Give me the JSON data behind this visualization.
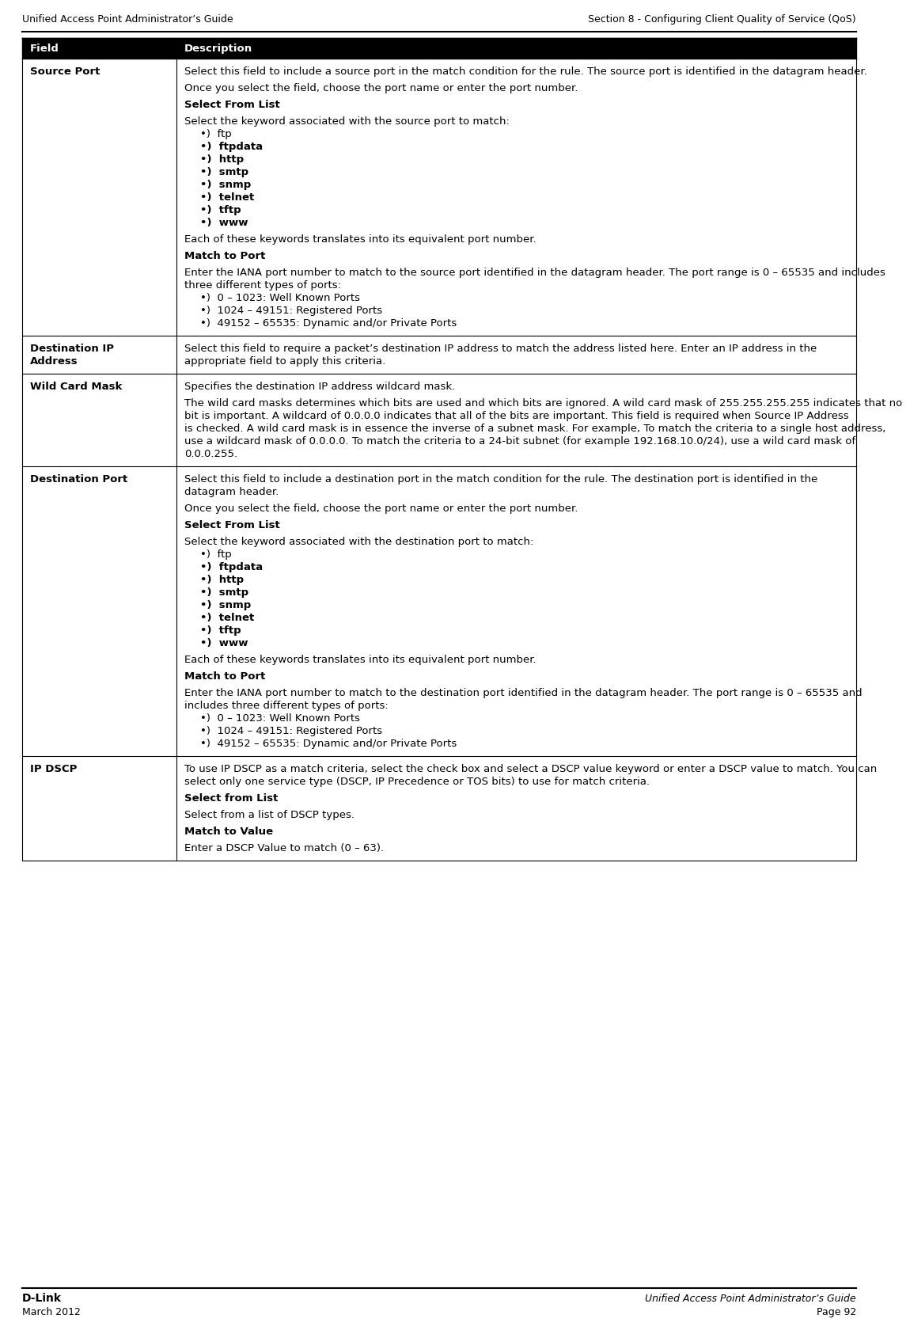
{
  "header_left": "Unified Access Point Administrator’s Guide",
  "header_right": "Section 8 - Configuring Client Quality of Service (QoS)",
  "footer_left_bold": "D-Link",
  "footer_left": "March 2012",
  "footer_right_top": "Unified Access Point Administrator’s Guide",
  "footer_right_bottom": "Page 92",
  "table_header_bg": "#000000",
  "table_header_text_color": "#ffffff",
  "table_col1_header": "Field",
  "table_col2_header": "Description",
  "bg_color": "#ffffff",
  "rows": [
    {
      "field": "Source Port",
      "description": [
        {
          "text": "Select this field to include a source port in the match condition for the rule. The source port is identified in the datagram header.",
          "style": "normal"
        },
        {
          "text": "Once you select the field, choose the port name or enter the port number.",
          "style": "normal"
        },
        {
          "text": "Select From List",
          "style": "bold"
        },
        {
          "text": "Select the keyword associated with the source port to match:",
          "style": "normal"
        },
        {
          "text": "•)  ftp",
          "style": "bullet"
        },
        {
          "text": "•)  ftpdata",
          "style": "bullet_bold"
        },
        {
          "text": "•)  http",
          "style": "bullet_bold"
        },
        {
          "text": "•)  smtp",
          "style": "bullet_bold"
        },
        {
          "text": "•)  snmp",
          "style": "bullet_bold"
        },
        {
          "text": "•)  telnet",
          "style": "bullet_bold"
        },
        {
          "text": "•)  tftp",
          "style": "bullet_bold"
        },
        {
          "text": "•)  www",
          "style": "bullet_bold"
        },
        {
          "text": "Each of these keywords translates into its equivalent port number.",
          "style": "normal"
        },
        {
          "text": "Match to Port",
          "style": "bold"
        },
        {
          "text": "Enter the IANA port number to match to the source port identified in the datagram header. The port range is 0 – 65535 and includes three different types of ports:",
          "style": "normal"
        },
        {
          "text": "•)  0 – 1023: Well Known Ports",
          "style": "bullet"
        },
        {
          "text": "•)  1024 – 49151: Registered Ports",
          "style": "bullet"
        },
        {
          "text": "•)  49152 – 65535: Dynamic and/or Private Ports",
          "style": "bullet"
        }
      ]
    },
    {
      "field": "Destination IP\nAddress",
      "description": [
        {
          "text": "Select this field to require a packet’s destination IP address to match the address listed here. Enter an IP address in the appropriate field to apply this criteria.",
          "style": "normal"
        }
      ]
    },
    {
      "field": "Wild Card Mask",
      "description": [
        {
          "text": "Specifies the destination IP address wildcard mask.",
          "style": "normal"
        },
        {
          "text": "The wild card masks determines which bits are used and which bits are ignored. A wild card mask of 255.255.255.255 indicates that no bit is important. A wildcard of 0.0.0.0 indicates that all of the bits are important. This field is required when Source IP Address is checked. A wild card mask is in essence the inverse of a subnet mask. For example, To match the criteria to a single host address, use a wildcard mask of 0.0.0.0. To match the criteria to a 24-bit subnet (for example 192.168.10.0/24), use a wild card mask of 0.0.0.255.",
          "style": "normal"
        }
      ]
    },
    {
      "field": "Destination Port",
      "description": [
        {
          "text": "Select this field to include a destination port in the match condition for the rule. The destination port is identified in the datagram header.",
          "style": "normal"
        },
        {
          "text": "Once you select the field, choose the port name or enter the port number.",
          "style": "normal"
        },
        {
          "text": "Select From List",
          "style": "bold"
        },
        {
          "text": "Select the keyword associated with the destination port to match:",
          "style": "normal"
        },
        {
          "text": "•)  ftp",
          "style": "bullet"
        },
        {
          "text": "•)  ftpdata",
          "style": "bullet_bold"
        },
        {
          "text": "•)  http",
          "style": "bullet_bold"
        },
        {
          "text": "•)  smtp",
          "style": "bullet_bold"
        },
        {
          "text": "•)  snmp",
          "style": "bullet_bold"
        },
        {
          "text": "•)  telnet",
          "style": "bullet_bold"
        },
        {
          "text": "•)  tftp",
          "style": "bullet_bold"
        },
        {
          "text": "•)  www",
          "style": "bullet_bold"
        },
        {
          "text": "Each of these keywords translates into its equivalent port number.",
          "style": "normal"
        },
        {
          "text": "Match to Port",
          "style": "bold"
        },
        {
          "text": "Enter the IANA port number to match to the destination port identified in the datagram header. The port range is 0 – 65535 and includes three different types of ports:",
          "style": "normal"
        },
        {
          "text": "•)  0 – 1023: Well Known Ports",
          "style": "bullet"
        },
        {
          "text": "•)  1024 – 49151: Registered Ports",
          "style": "bullet"
        },
        {
          "text": "•)  49152 – 65535: Dynamic and/or Private Ports",
          "style": "bullet"
        }
      ]
    },
    {
      "field": "IP DSCP",
      "description": [
        {
          "text": "To use IP DSCP as a match criteria, select the check box and select a DSCP value keyword or enter a DSCP value to match. You can select only one service type (DSCP, IP Precedence or TOS bits) to use for match criteria.",
          "style": "normal"
        },
        {
          "text": "Select from List",
          "style": "bold"
        },
        {
          "text": "Select from a list of DSCP types.",
          "style": "normal"
        },
        {
          "text": "Match to Value",
          "style": "bold"
        },
        {
          "text": "Enter a DSCP Value to match (0 – 63).",
          "style": "normal"
        }
      ]
    }
  ]
}
